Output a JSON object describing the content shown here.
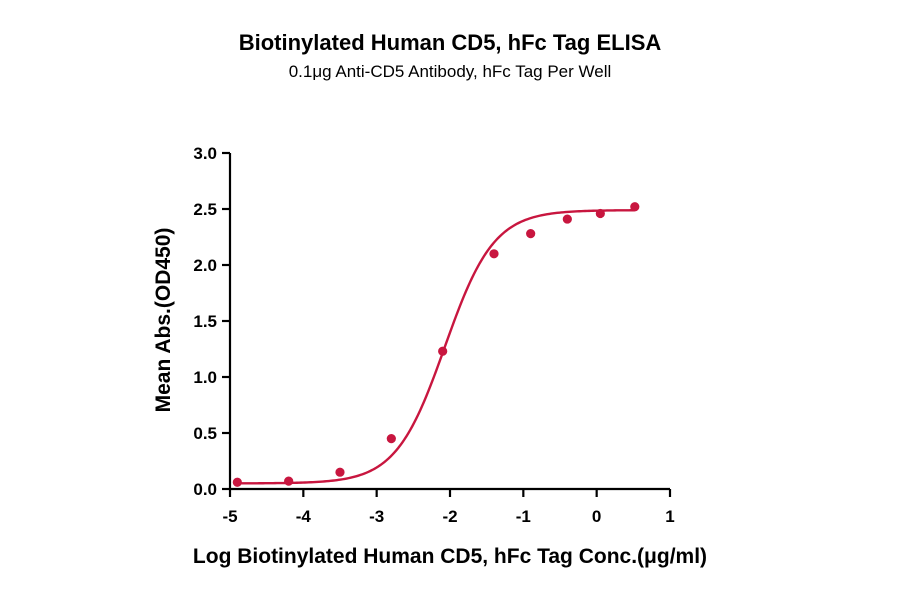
{
  "chart_data": {
    "type": "scatter",
    "title": "Biotinylated Human CD5, hFc Tag ELISA",
    "subtitle": "0.1μg Anti-CD5 Antibody, hFc Tag Per Well",
    "xlabel": "Log Biotinylated Human CD5, hFc Tag Conc.(μg/ml)",
    "ylabel": "Mean Abs.(OD450)",
    "xlim": [
      -5,
      1
    ],
    "ylim": [
      0.0,
      3.0
    ],
    "x_ticks": [
      "-5",
      "-4",
      "-3",
      "-2",
      "-1",
      "0",
      "1"
    ],
    "y_ticks": [
      "0.0",
      "0.5",
      "1.0",
      "1.5",
      "2.0",
      "2.5",
      "3.0"
    ],
    "grid": false,
    "colors": {
      "series": "#c8163f"
    },
    "series": [
      {
        "points": [
          {
            "x": -4.9,
            "y": 0.06
          },
          {
            "x": -4.2,
            "y": 0.07
          },
          {
            "x": -3.5,
            "y": 0.15
          },
          {
            "x": -2.8,
            "y": 0.45
          },
          {
            "x": -2.1,
            "y": 1.23
          },
          {
            "x": -1.4,
            "y": 2.1
          },
          {
            "x": -0.9,
            "y": 2.28
          },
          {
            "x": -0.4,
            "y": 2.41
          },
          {
            "x": 0.05,
            "y": 2.46
          },
          {
            "x": 0.52,
            "y": 2.52
          }
        ],
        "fit": {
          "model": "4PL",
          "bottom": 0.05,
          "top": 2.49,
          "logEC50": -2.07,
          "hill": 1.3
        }
      }
    ]
  }
}
